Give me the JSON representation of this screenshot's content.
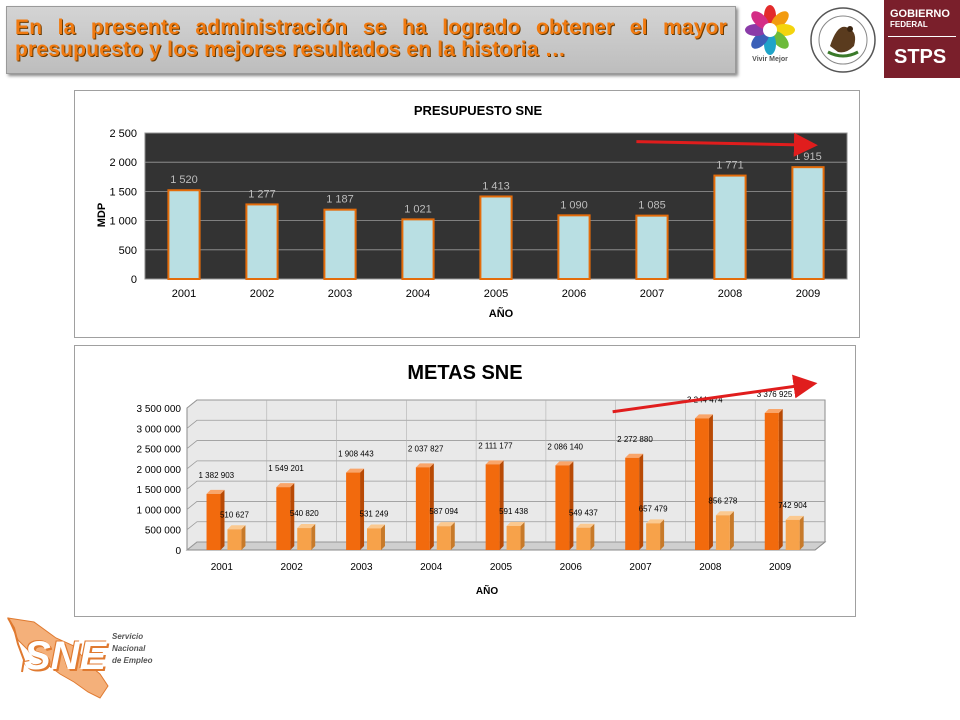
{
  "header": {
    "banner_text": "En la presente administración se ha logrado obtener el mayor presupuesto y los mejores resultados en la historia …"
  },
  "logos": {
    "vivir_mejor": "Vivir Mejor",
    "gobierno_line1": "GOBIERNO",
    "gobierno_line2": "FEDERAL",
    "stps": "STPS",
    "sne_mark": "SNE",
    "sne_line1": "Servicio",
    "sne_line2": "Nacional",
    "sne_line3": "de Empleo"
  },
  "colors": {
    "banner_text": "#f07a10",
    "chart1_plot_bg": "#333333",
    "chart1_bar_fill": "#b9dfe3",
    "chart1_bar_border": "#e46c0a",
    "chart2_series1": "#f26a0d",
    "chart2_series2": "#f7a24a",
    "trend_arrow": "#e01d1d",
    "gobierno_bg": "#7a1f2b"
  },
  "chart_data": [
    {
      "type": "bar",
      "title": "PRESUPUESTO SNE",
      "xlabel": "AÑO",
      "ylabel": "MDP",
      "categories": [
        "2001",
        "2002",
        "2003",
        "2004",
        "2005",
        "2006",
        "2007",
        "2008",
        "2009"
      ],
      "values": [
        1520,
        1277,
        1187,
        1021,
        1413,
        1090,
        1085,
        1771,
        1915
      ],
      "data_labels": [
        "1 520",
        "1 277",
        "1 187",
        "1 021",
        "1 413",
        "1 090",
        "1 085",
        "1 771",
        "1 915"
      ],
      "ylim": [
        0,
        2500
      ],
      "yticks": [
        0,
        500,
        1000,
        1500,
        2000,
        2500
      ],
      "ytick_labels": [
        "0",
        "500",
        "1 000",
        "1 500",
        "2 000",
        "2 500"
      ],
      "grid": true,
      "trend_arrow": {
        "from_category": "2007",
        "to_category": "2009"
      }
    },
    {
      "type": "bar",
      "title": "METAS SNE",
      "xlabel": "AÑO",
      "categories": [
        "2001",
        "2002",
        "2003",
        "2004",
        "2005",
        "2006",
        "2007",
        "2008",
        "2009"
      ],
      "series": [
        {
          "values": [
            1382903,
            1549201,
            1908443,
            2037827,
            2111177,
            2086140,
            2272880,
            3244474,
            3376925
          ],
          "data_labels": [
            "1 382 903",
            "1 549 201",
            "1 908 443",
            "2 037 827",
            "2 111 177",
            "2 086 140",
            "2 272 880",
            "3 244 474",
            "3 376 925"
          ]
        },
        {
          "values": [
            510627,
            540820,
            531249,
            587094,
            591438,
            549437,
            657479,
            856278,
            742904
          ],
          "data_labels": [
            "510 627",
            "540 820",
            "531 249",
            "587 094",
            "591 438",
            "549 437",
            "657 479",
            "856 278",
            "742 904"
          ]
        }
      ],
      "ylim": [
        0,
        3500000
      ],
      "yticks": [
        0,
        500000,
        1000000,
        1500000,
        2000000,
        2500000,
        3000000,
        3500000
      ],
      "ytick_labels": [
        "0",
        "500 000",
        "1 000 000",
        "1 500 000",
        "2 000 000",
        "2 500 000",
        "3 000 000",
        "3 500 000"
      ],
      "grid": true,
      "style": "3d",
      "trend_arrow": {
        "from_category": "2007",
        "to_category": "2009"
      }
    }
  ]
}
